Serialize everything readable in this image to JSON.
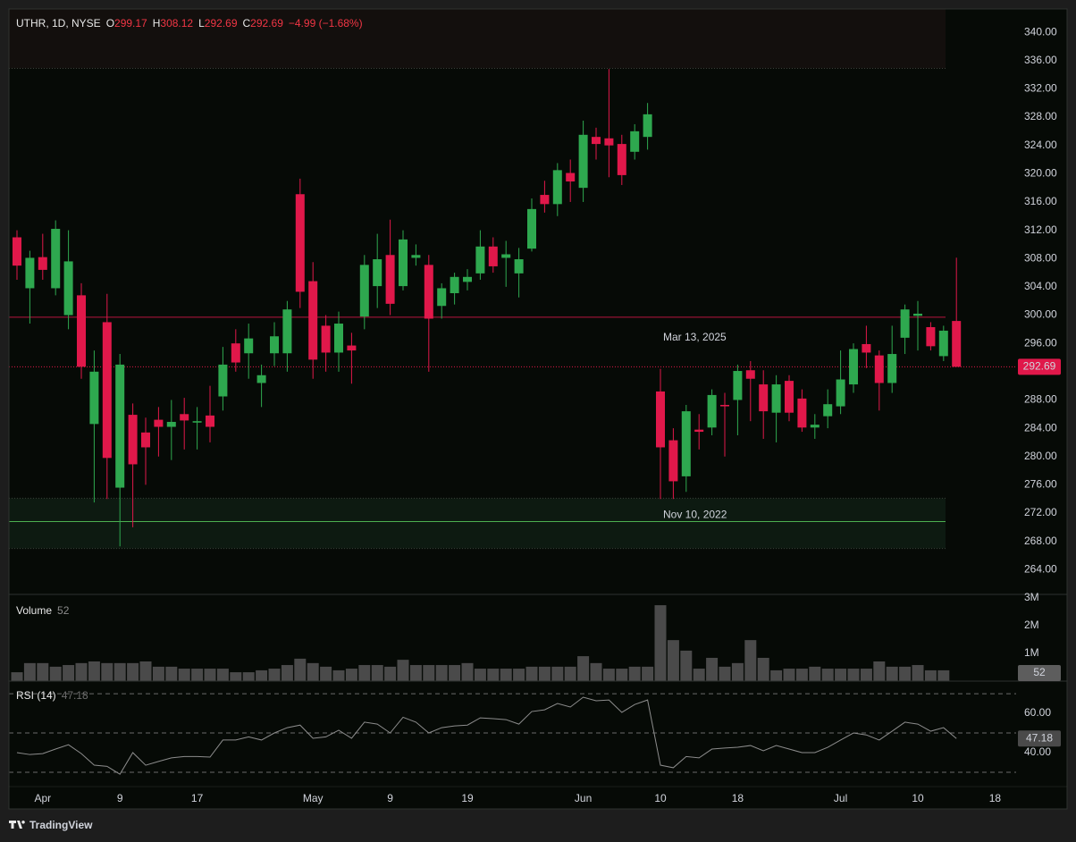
{
  "chart_data": {
    "type": "candlestick",
    "title": "UTHR, 1D, NYSE",
    "legend_keys": [
      "O",
      "H",
      "L",
      "C"
    ],
    "change": "−4.99 (−1.68%)",
    "categories": [
      null,
      null,
      "Apr",
      null,
      null,
      null,
      null,
      null,
      "9",
      null,
      null,
      null,
      null,
      null,
      "17",
      null,
      null,
      null,
      null,
      null,
      null,
      null,
      null,
      "May",
      null,
      null,
      null,
      null,
      null,
      "9",
      null,
      null,
      null,
      null,
      null,
      "19",
      null,
      null,
      null,
      null,
      null,
      null,
      null,
      null,
      "Jun",
      null,
      null,
      null,
      null,
      null,
      "10",
      null,
      null,
      null,
      null,
      null,
      "18",
      null,
      null,
      null,
      null,
      null,
      null,
      null,
      "Jul",
      null,
      null,
      null,
      null,
      null,
      "10",
      null,
      null,
      null,
      null,
      null,
      "18"
    ],
    "open": [
      311,
      303.8,
      308.2,
      303.8,
      300,
      302.8,
      284.6,
      299,
      275.6,
      285.9,
      283.4,
      285.2,
      284.2,
      286,
      284.8,
      285.8,
      288.5,
      296,
      294.6,
      290.4,
      294.6,
      294.6,
      317.1,
      304.8,
      298.5,
      294.7,
      295.7,
      299.8,
      304.1,
      308.5,
      304.1,
      308.1,
      307.1,
      301.3,
      303.1,
      304.7,
      305.9,
      309.7,
      308.1,
      305.9,
      309.4,
      317,
      315.7,
      320.1,
      318,
      325.2,
      325,
      324.2,
      323.1,
      325.2,
      289.2,
      282.3,
      277.2,
      283.8,
      284.1,
      287.3,
      288,
      292.2,
      290.2,
      286.2,
      290.7,
      288.2,
      284.1,
      285.7,
      287.1,
      290.2,
      295.9,
      294.3,
      290.4,
      296.8,
      299.9,
      298.3,
      294.2,
      299.17,
      null,
      null,
      null
    ],
    "high": [
      312,
      309.1,
      311.5,
      313.4,
      312,
      304.5,
      295,
      303,
      294.5,
      287.5,
      285.5,
      287,
      288,
      288.3,
      287,
      290,
      295.5,
      298,
      298.8,
      293,
      299,
      302,
      319.3,
      307.5,
      300,
      300.5,
      297.5,
      308.5,
      311.5,
      313.5,
      312,
      310,
      308.5,
      304.5,
      306,
      306.5,
      312,
      311,
      310.5,
      309.5,
      316.5,
      319,
      321.5,
      322,
      327.5,
      326.5,
      334.8,
      325.5,
      327,
      330,
      292.4,
      284,
      287.3,
      286,
      289.5,
      289,
      293,
      293.5,
      292.2,
      291.5,
      291.5,
      289.5,
      286,
      289.5,
      295,
      296,
      298.5,
      295,
      298.5,
      301.5,
      302,
      299,
      298.5,
      308.12,
      null,
      null,
      null
    ],
    "low": [
      305,
      298.8,
      305,
      302.8,
      298,
      291,
      273.5,
      274,
      267.3,
      270,
      276,
      280,
      279.5,
      281,
      281,
      282,
      286.5,
      292,
      291,
      287,
      292.8,
      292,
      301,
      291,
      292,
      292,
      290.3,
      298,
      301,
      300,
      303.5,
      307,
      292,
      299.5,
      301.5,
      303.5,
      305,
      306,
      304,
      302.5,
      309,
      314.5,
      314,
      316,
      316,
      322,
      319.5,
      318.4,
      322,
      323.4,
      274,
      274,
      275,
      281,
      283,
      280,
      283,
      285,
      282.5,
      282,
      285,
      283.5,
      282.5,
      284,
      286,
      289,
      292.5,
      286.5,
      289,
      294.5,
      295,
      295,
      293.5,
      292.69,
      null,
      null,
      null
    ],
    "close": [
      307,
      308.1,
      306.4,
      312.2,
      307.6,
      292.7,
      292,
      279.8,
      293,
      278.9,
      281.3,
      284.2,
      284.9,
      285.1,
      285,
      284.2,
      293,
      293.3,
      296.7,
      291.5,
      297,
      300.8,
      303.3,
      293.7,
      294.7,
      298.8,
      295,
      307.1,
      307.9,
      301.6,
      310.7,
      308.5,
      299.5,
      303.8,
      305.4,
      305.4,
      309.7,
      306.9,
      308.6,
      307.9,
      315,
      315.7,
      320.5,
      318.9,
      325.5,
      324.2,
      324,
      319.8,
      326,
      328.4,
      281.3,
      276.5,
      286.4,
      283.5,
      288.7,
      287.1,
      292.1,
      291,
      286.4,
      290.2,
      286.2,
      284.1,
      284.5,
      287.4,
      290.9,
      295.2,
      294.7,
      290.4,
      294.5,
      300.8,
      300.2,
      295.6,
      297.8,
      292.69,
      null,
      null,
      null
    ],
    "up_color": "#2ea84f",
    "down_color": "#e0184a",
    "ylim": [
      260.5,
      343.3
    ],
    "yticks": [
      {
        "value": 264,
        "label": "264.00"
      },
      {
        "value": 268,
        "label": "268.00"
      },
      {
        "value": 272,
        "label": "272.00"
      },
      {
        "value": 276,
        "label": "276.00"
      },
      {
        "value": 280,
        "label": "280.00"
      },
      {
        "value": 284,
        "label": "284.00"
      },
      {
        "value": 288,
        "label": "288.00"
      },
      {
        "value": 292,
        "label": "292.00"
      },
      {
        "value": 296,
        "label": "296.00"
      },
      {
        "value": 300,
        "label": "300.00"
      },
      {
        "value": 304,
        "label": "304.00"
      },
      {
        "value": 308,
        "label": "308.00"
      },
      {
        "value": 312,
        "label": "312.00"
      },
      {
        "value": 316,
        "label": "316.00"
      },
      {
        "value": 320,
        "label": "320.00"
      },
      {
        "value": 324,
        "label": "324.00"
      },
      {
        "value": 328,
        "label": "328.00"
      },
      {
        "value": 332,
        "label": "332.00"
      },
      {
        "value": 336,
        "label": "336.00"
      },
      {
        "value": 340,
        "label": "340.00"
      }
    ],
    "price_line_color": "#e0184a",
    "levels": [
      {
        "label": "Mar 13, 2025",
        "value": 299.7,
        "color": "#b8163f"
      },
      {
        "label": "Nov 10, 2022",
        "value": 270.8,
        "color": "#4caf50"
      }
    ],
    "zones": [
      {
        "from": 334.9,
        "to": 343.3,
        "color": "#130f0d"
      },
      {
        "from": 267,
        "to": 274.1,
        "color": "#0d1a11"
      }
    ],
    "volume": {
      "type": "bar",
      "name": "Volume",
      "color": "#4a4a4a",
      "values": [
        320000,
        650000,
        650000,
        520000,
        580000,
        650000,
        710000,
        650000,
        650000,
        650000,
        710000,
        520000,
        520000,
        450000,
        450000,
        450000,
        450000,
        320000,
        320000,
        390000,
        450000,
        580000,
        810000,
        650000,
        520000,
        390000,
        450000,
        580000,
        580000,
        520000,
        770000,
        580000,
        580000,
        580000,
        580000,
        650000,
        450000,
        450000,
        450000,
        450000,
        520000,
        520000,
        520000,
        520000,
        900000,
        650000,
        450000,
        450000,
        520000,
        520000,
        2740000,
        1480000,
        1100000,
        450000,
        840000,
        520000,
        650000,
        1480000,
        840000,
        390000,
        450000,
        450000,
        520000,
        450000,
        450000,
        450000,
        450000,
        710000,
        520000,
        520000,
        580000,
        390000,
        390000,
        52,
        null,
        null,
        null
      ],
      "ylim": [
        0,
        3130000
      ],
      "yticks": [
        {
          "value": 1000000,
          "label": "1M"
        },
        {
          "value": 2000000,
          "label": "2M"
        },
        {
          "value": 3000000,
          "label": "3M"
        }
      ]
    },
    "rsi": {
      "type": "line",
      "name": "RSI (14)",
      "color": "#8c8c8c",
      "values": [
        40,
        39,
        39.5,
        41.8,
        44,
        39.5,
        33.6,
        33,
        29,
        40,
        33.6,
        35.5,
        37.3,
        38,
        38,
        37.7,
        46.4,
        46.4,
        48,
        46.4,
        50,
        52.7,
        54,
        47.3,
        48,
        51.4,
        47.3,
        55.5,
        54.5,
        50,
        58,
        55.5,
        50,
        52.7,
        53.6,
        54,
        57.7,
        57.3,
        56.8,
        54.5,
        60.9,
        61.8,
        65,
        63.2,
        68.2,
        66.4,
        66.8,
        60.5,
        64.5,
        66.8,
        33.6,
        32.3,
        38,
        37.3,
        41.8,
        42.3,
        42.7,
        43.6,
        40.9,
        43.6,
        41.8,
        40,
        40,
        42.7,
        46.4,
        50,
        49,
        46.4,
        50.9,
        55.5,
        54.5,
        50.9,
        52.7,
        47.18,
        null,
        null,
        null
      ],
      "ylim": [
        22.7,
        76.4
      ],
      "yticks": [
        {
          "value": 40,
          "label": "40.00"
        },
        {
          "value": 60,
          "label": "60.00"
        }
      ],
      "levels": [
        30,
        50,
        70
      ]
    }
  },
  "footer": "TradingView"
}
